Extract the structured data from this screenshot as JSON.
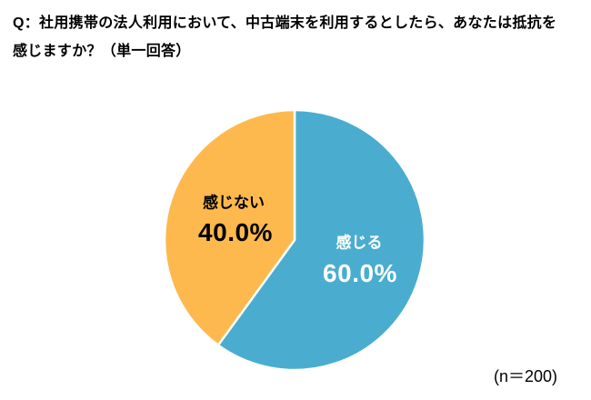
{
  "title": {
    "line1": "Q：社用携帯の法人利用において、中古端末を利用するとしたら、あなたは抵抗を",
    "line2": "感じますか？（単一回答）"
  },
  "chart_data": {
    "type": "pie",
    "title": "Q：社用携帯の法人利用において、中古端末を利用するとしたら、あなたは抵抗を感じますか？（単一回答）",
    "start_angle_deg": 0,
    "direction": "clockwise",
    "slices": [
      {
        "label": "感じる",
        "value": 60.0,
        "pct_label": "60.0%",
        "color": "#4AADCF",
        "text_color": "#FFFFFF"
      },
      {
        "label": "感じない",
        "value": 40.0,
        "pct_label": "40.0%",
        "color": "#FDB94D",
        "text_color": "#000000"
      }
    ],
    "n": 200,
    "sample_note": "(n＝200)",
    "legend": "none",
    "background": "#FFFFFF"
  }
}
